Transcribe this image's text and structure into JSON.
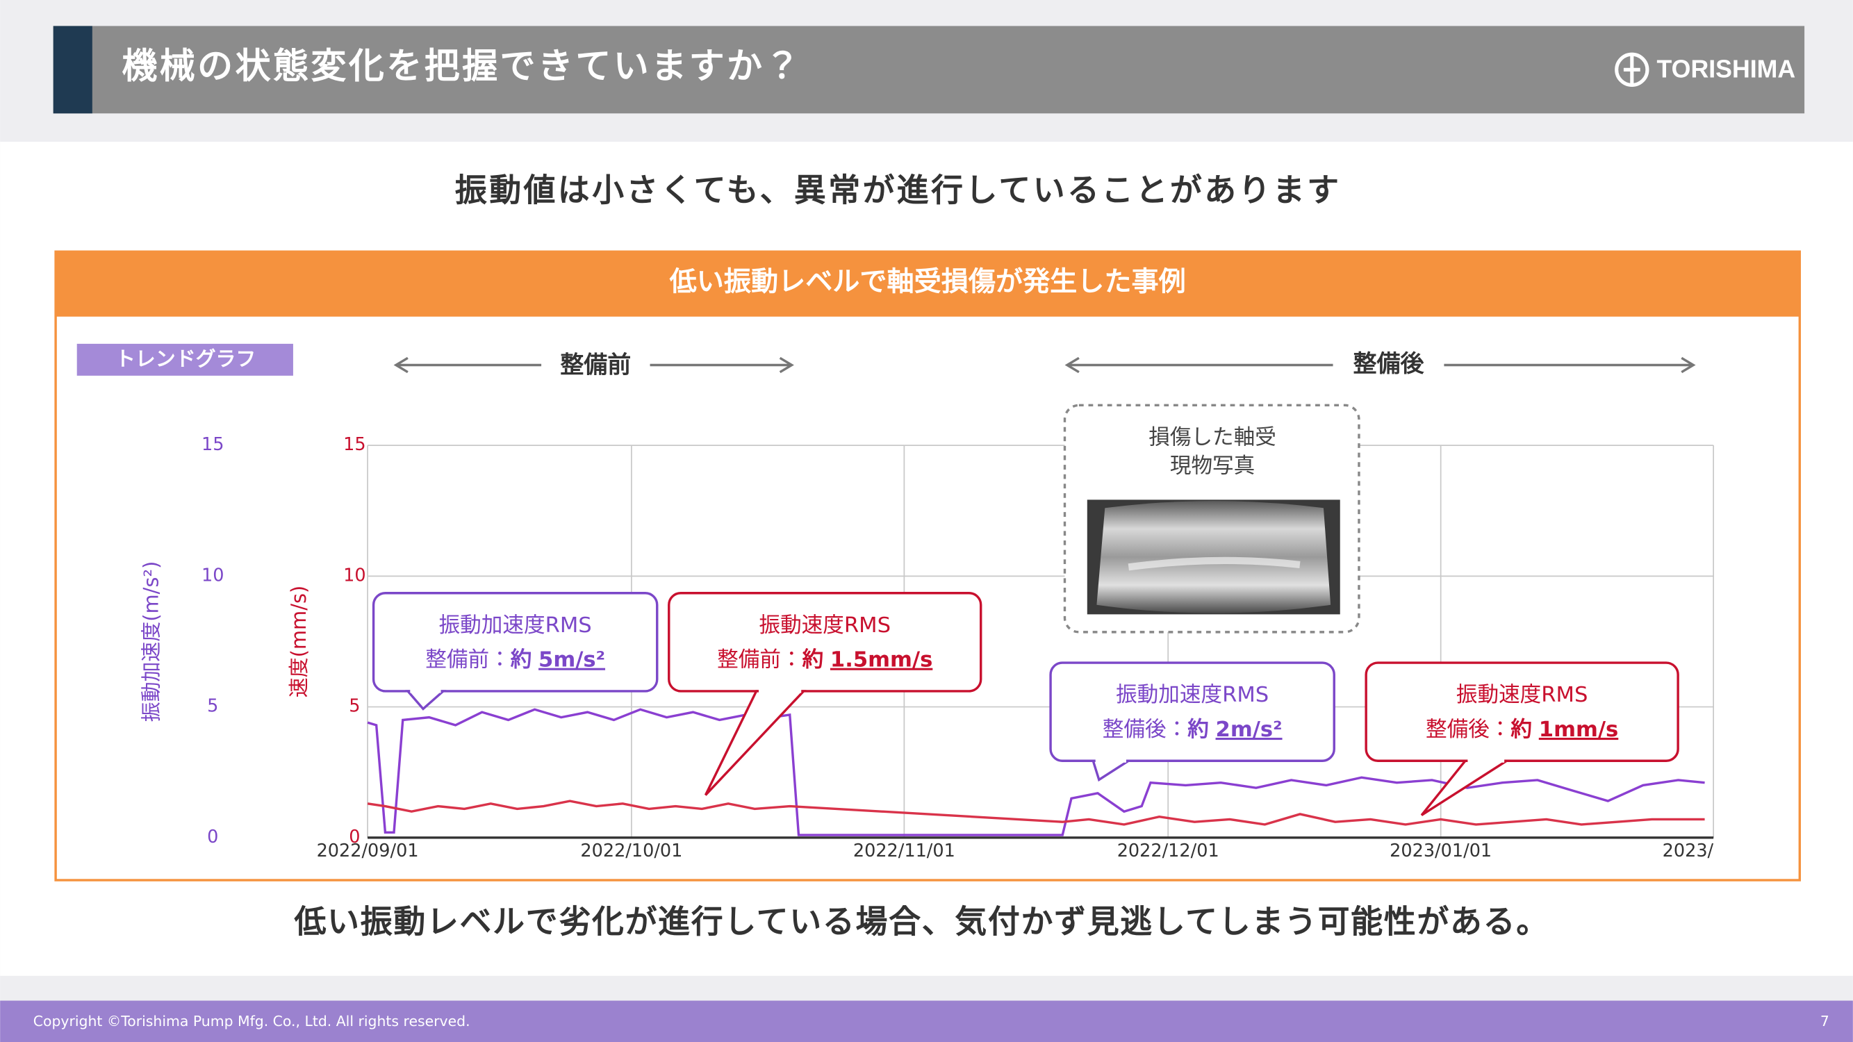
{
  "header": {
    "title": "機械の状態変化を把握できていますか？",
    "logo": "TORISHIMA"
  },
  "subtitle": "振動値は小さくても、異常が進行していることがあります",
  "panel": {
    "title": "低い振動レベルで軸受損傷が発生した事例",
    "tag": "トレンドグラフ",
    "before": "整備前",
    "after": "整備後",
    "photo_caption": [
      "損傷した軸受",
      "現物写真"
    ],
    "callouts": [
      {
        "title": "振動加速度RMS",
        "prefix": "整備前：",
        "approx": "約",
        "value": "5m/s²",
        "color": "#7b47c8"
      },
      {
        "title": "振動速度RMS",
        "prefix": "整備前：",
        "approx": "約",
        "value": "1.5mm/s",
        "color": "#c8102e"
      },
      {
        "title": "振動加速度RMS",
        "prefix": "整備後：",
        "approx": "約",
        "value": "2m/s²",
        "color": "#7b47c8"
      },
      {
        "title": "振動速度RMS",
        "prefix": "整備後：",
        "approx": "約",
        "value": "1mm/s",
        "color": "#c8102e"
      }
    ]
  },
  "chart_data": {
    "type": "line",
    "y_label": "振動加速度(m/s²)",
    "y2_label": "速度(mm/s)",
    "ylim": [
      0,
      15
    ],
    "yticks": [
      0,
      5,
      10,
      15
    ],
    "y2lim": [
      0,
      15
    ],
    "y2ticks": [
      0,
      5,
      10,
      15
    ],
    "xlim": [
      "2022/09/01",
      "2023/02/01"
    ],
    "xticks": [
      "2022/09/01",
      "2022/10/01",
      "2022/11/01",
      "2022/12/01",
      "2023/01/01",
      {
        "value": "2023/02/01",
        "label": "2023/"
      }
    ],
    "grid": true,
    "series": [
      {
        "name": "振動加速度RMS",
        "color": "#8a3fd1",
        "x": [
          "2022/09/01",
          "2022/09/02",
          "2022/09/03",
          "2022/09/04",
          "2022/09/05",
          "2022/09/08",
          "2022/09/11",
          "2022/09/14",
          "2022/09/17",
          "2022/09/20",
          "2022/09/23",
          "2022/09/26",
          "2022/09/29",
          "2022/10/02",
          "2022/10/05",
          "2022/10/08",
          "2022/10/11",
          "2022/10/14",
          "2022/10/17",
          "2022/10/19",
          "2022/10/20",
          "2022/10/25",
          "2022/11/01",
          "2022/11/08",
          "2022/11/15",
          "2022/11/19",
          "2022/11/20",
          "2022/11/23",
          "2022/11/26",
          "2022/11/28",
          "2022/11/29",
          "2022/12/03",
          "2022/12/07",
          "2022/12/11",
          "2022/12/15",
          "2022/12/19",
          "2022/12/23",
          "2022/12/27",
          "2022/12/31",
          "2023/01/04",
          "2023/01/08",
          "2023/01/12",
          "2023/01/16",
          "2023/01/20",
          "2023/01/24",
          "2023/01/28",
          "2023/01/31"
        ],
        "values": [
          4.4,
          4.3,
          0.2,
          0.2,
          4.5,
          4.6,
          4.3,
          4.8,
          4.5,
          4.9,
          4.6,
          4.8,
          4.5,
          4.9,
          4.6,
          4.8,
          4.5,
          4.7,
          4.6,
          4.7,
          0.1,
          0.1,
          0.1,
          0.1,
          0.1,
          0.1,
          1.5,
          1.7,
          1.0,
          1.2,
          2.1,
          2.0,
          2.1,
          1.9,
          2.2,
          2.0,
          2.3,
          2.1,
          2.2,
          1.9,
          2.1,
          2.2,
          1.8,
          1.4,
          2.0,
          2.2,
          2.1
        ]
      },
      {
        "name": "振動速度RMS",
        "color": "#d9334a",
        "axis": "y2",
        "x": [
          "2022/09/01",
          "2022/09/03",
          "2022/09/06",
          "2022/09/09",
          "2022/09/12",
          "2022/09/15",
          "2022/09/18",
          "2022/09/21",
          "2022/09/24",
          "2022/09/27",
          "2022/09/30",
          "2022/10/03",
          "2022/10/06",
          "2022/10/09",
          "2022/10/12",
          "2022/10/15",
          "2022/10/19",
          "2022/11/19",
          "2022/11/22",
          "2022/11/26",
          "2022/11/30",
          "2022/12/04",
          "2022/12/08",
          "2022/12/12",
          "2022/12/16",
          "2022/12/20",
          "2022/12/24",
          "2022/12/28",
          "2023/01/01",
          "2023/01/05",
          "2023/01/09",
          "2023/01/13",
          "2023/01/17",
          "2023/01/21",
          "2023/01/25",
          "2023/01/31"
        ],
        "values": [
          1.3,
          1.2,
          1.0,
          1.2,
          1.1,
          1.3,
          1.1,
          1.2,
          1.4,
          1.2,
          1.3,
          1.1,
          1.2,
          1.1,
          1.3,
          1.1,
          1.2,
          0.6,
          0.7,
          0.5,
          0.8,
          0.6,
          0.7,
          0.5,
          0.9,
          0.6,
          0.7,
          0.5,
          0.7,
          0.5,
          0.6,
          0.7,
          0.5,
          0.6,
          0.7,
          0.7
        ]
      }
    ]
  },
  "conclusion": "低い振動レベルで劣化が進行している場合、気付かず見逃してしまう可能性がある。",
  "footer": {
    "copyright": "Copyright ©Torishima Pump Mfg. Co., Ltd. All rights reserved.",
    "page": 7
  }
}
